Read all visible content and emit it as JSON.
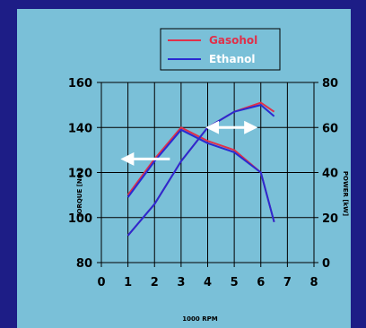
{
  "chart_data": {
    "type": "line",
    "xlabel": "1000 RPM",
    "ylabel_left": "TORQUE [Nm]",
    "ylabel_right": "POWER [kW]",
    "xlim": [
      0,
      8
    ],
    "ylim_left": [
      80,
      160
    ],
    "ylim_right": [
      0,
      80
    ],
    "x_ticks": [
      "0",
      "1",
      "2",
      "3",
      "4",
      "5",
      "6",
      "7",
      "8"
    ],
    "y_left_ticks": [
      "80",
      "100",
      "120",
      "140",
      "160"
    ],
    "y_right_ticks": [
      "0",
      "20",
      "40",
      "60",
      "80"
    ],
    "grid": true,
    "legend_position": "top",
    "series": [
      {
        "name": "Gasohol",
        "color": "#e0304a",
        "axis": "left",
        "metric": "torque",
        "x": [
          1,
          2,
          3,
          4,
          5,
          6,
          6.5
        ],
        "y": [
          110,
          126,
          140,
          134,
          130,
          120,
          98
        ]
      },
      {
        "name": "Ethanol",
        "color": "#2a2ad2",
        "axis": "left",
        "metric": "torque",
        "x": [
          1,
          2,
          3,
          4,
          5,
          6,
          6.5
        ],
        "y": [
          109,
          125,
          139,
          133,
          129,
          120,
          98
        ]
      },
      {
        "name": "Gasohol",
        "color": "#e0304a",
        "axis": "right",
        "metric": "power",
        "x": [
          1,
          2,
          3,
          4,
          5,
          6,
          6.5
        ],
        "y": [
          12,
          26,
          45,
          60,
          67,
          71,
          67
        ]
      },
      {
        "name": "Ethanol",
        "color": "#2a2ad2",
        "axis": "right",
        "metric": "power",
        "x": [
          1,
          2,
          3,
          4,
          5,
          6,
          6.5
        ],
        "y": [
          12,
          26,
          45,
          60,
          67,
          70,
          65
        ]
      }
    ],
    "annotations": [
      {
        "type": "arrow",
        "axis": "left",
        "x": 1.7,
        "y": 126,
        "direction": "left",
        "color": "#ffffff"
      },
      {
        "type": "arrow",
        "axis": "right",
        "x": 4.9,
        "y": 60,
        "direction": "both",
        "color": "#ffffff"
      }
    ]
  }
}
